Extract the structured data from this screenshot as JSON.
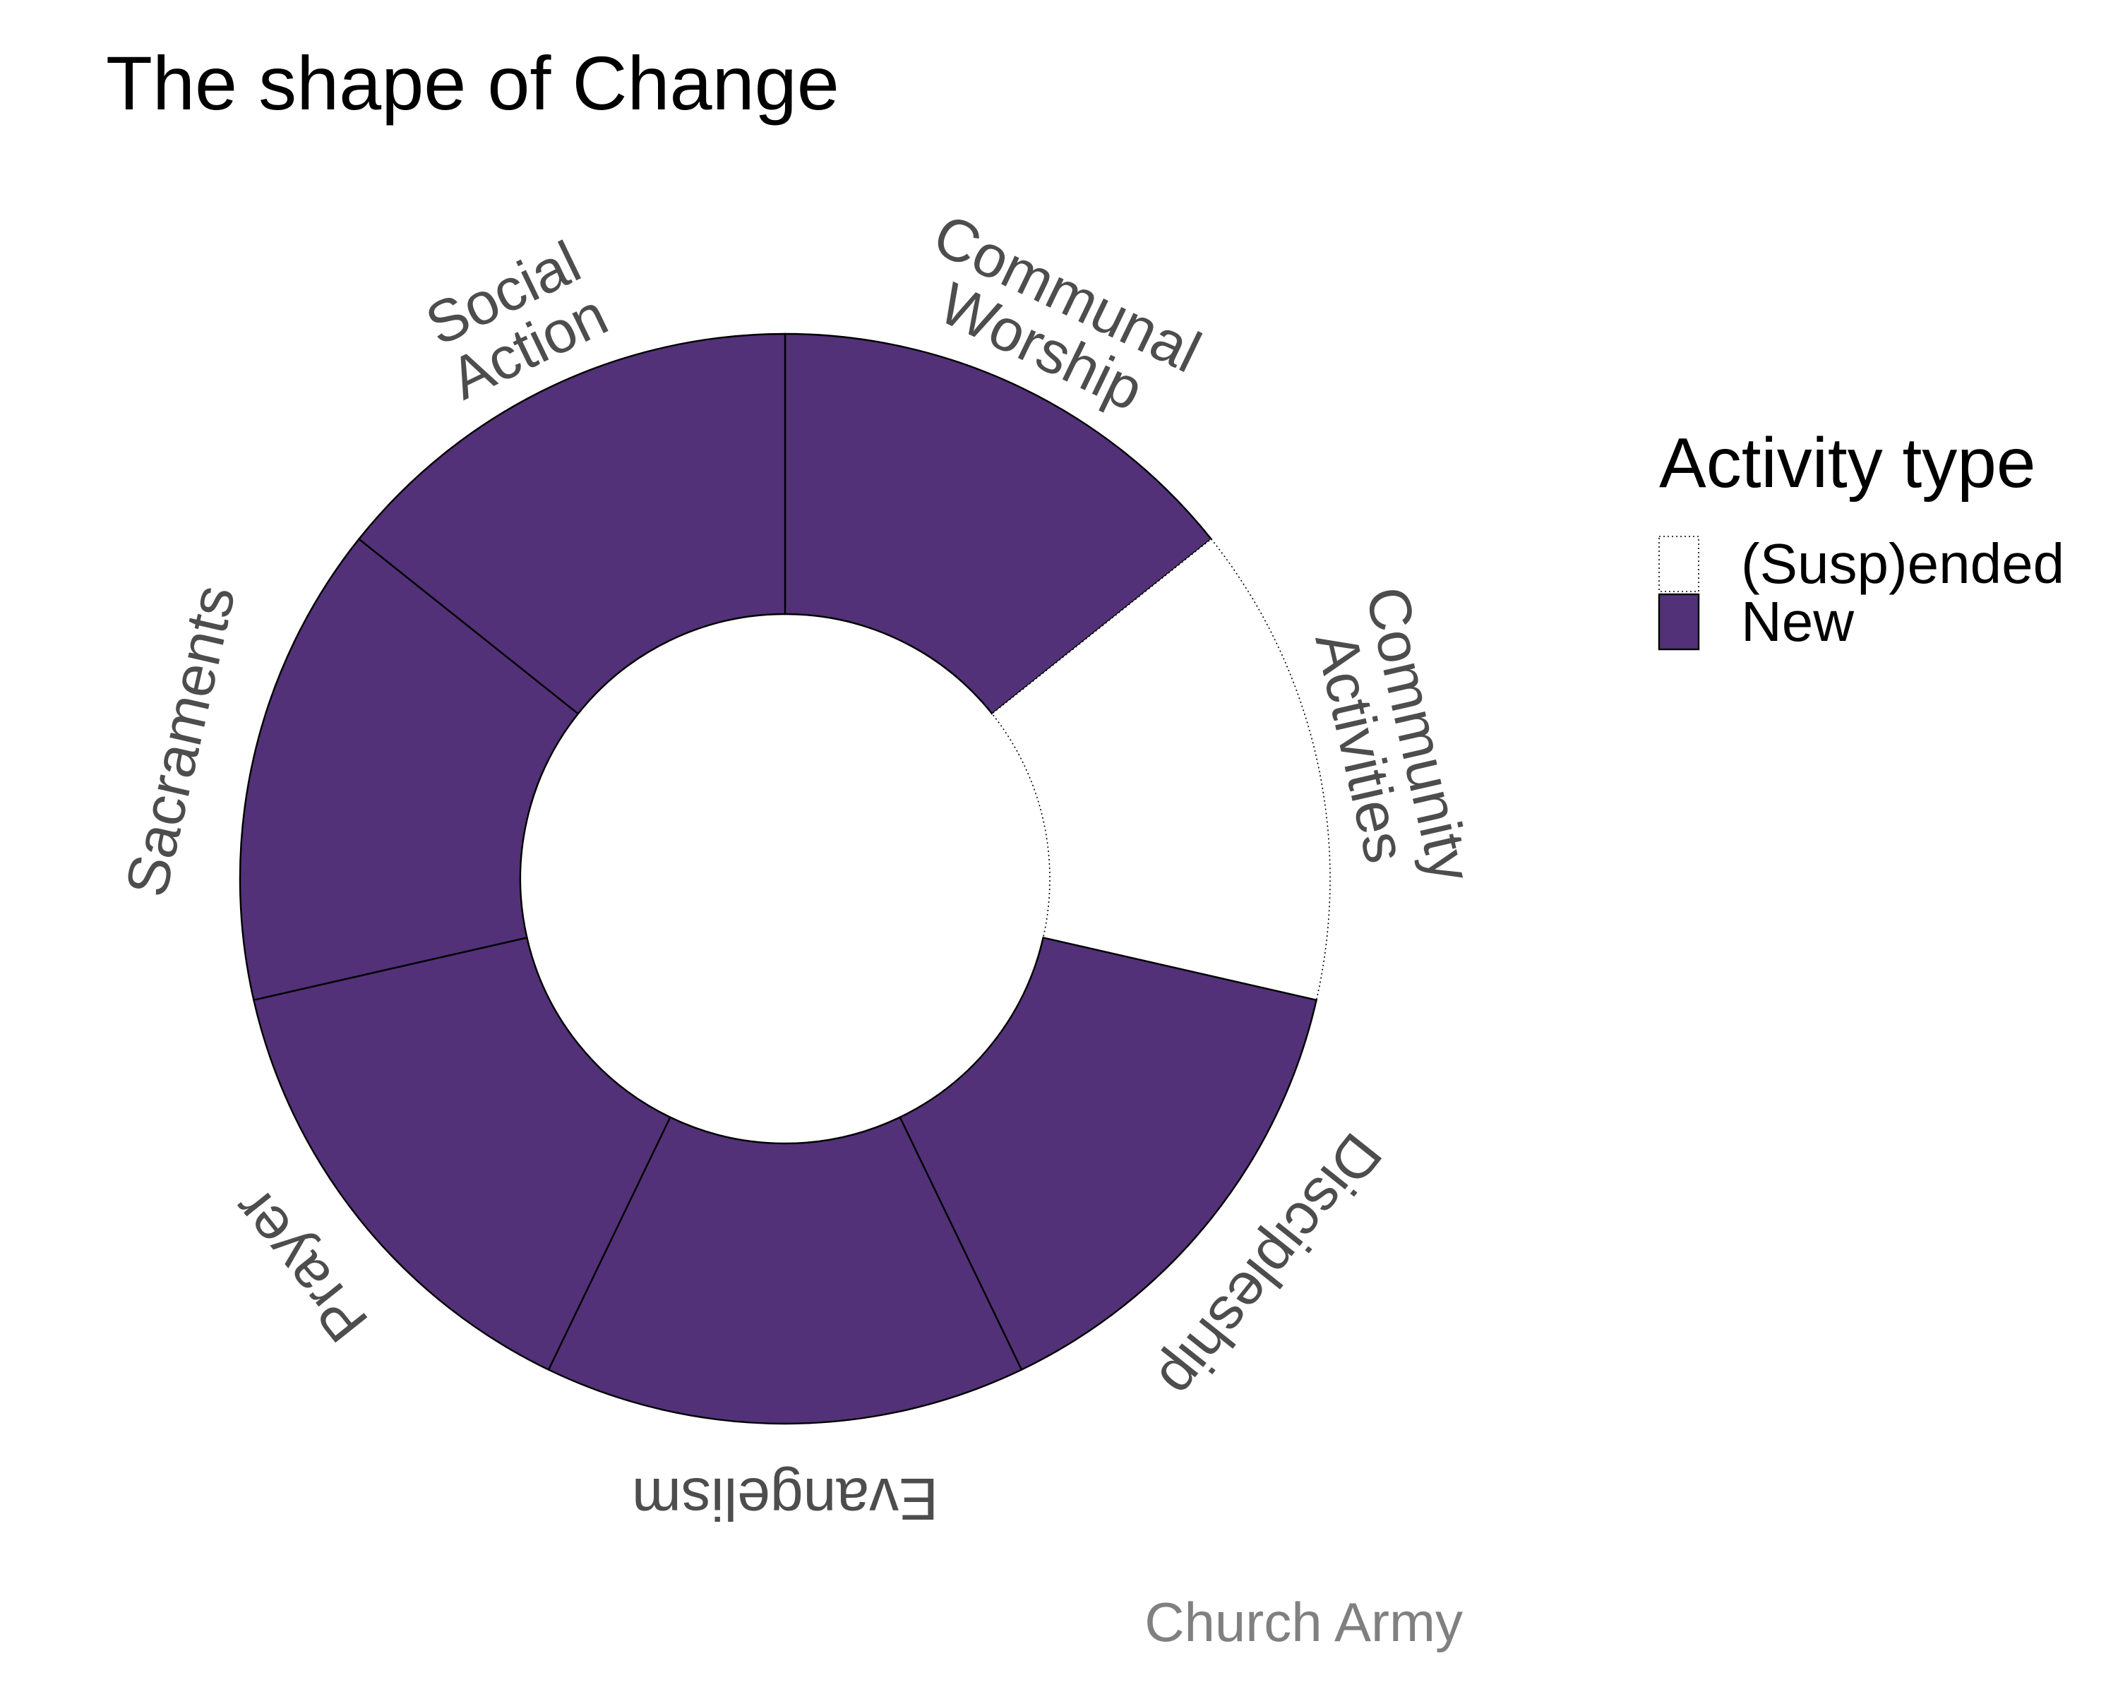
{
  "chart_data": {
    "type": "pie",
    "subtype": "donut",
    "title": "The shape of Change",
    "caption": "Church Army",
    "categories": [
      {
        "label_lines": [
          "Communal",
          "Worship"
        ],
        "activity_type": "New",
        "value": 1
      },
      {
        "label_lines": [
          "Community",
          "Activities"
        ],
        "activity_type": "(Susp)ended",
        "value": 1
      },
      {
        "label_lines": [
          "Discipleship"
        ],
        "activity_type": "New",
        "value": 1
      },
      {
        "label_lines": [
          "Evangelism"
        ],
        "activity_type": "New",
        "value": 1
      },
      {
        "label_lines": [
          "Prayer"
        ],
        "activity_type": "New",
        "value": 1
      },
      {
        "label_lines": [
          "Sacraments"
        ],
        "activity_type": "New",
        "value": 1
      },
      {
        "label_lines": [
          "Social",
          "Action"
        ],
        "activity_type": "New",
        "value": 1
      }
    ],
    "legend": {
      "title": "Activity type",
      "position": "right",
      "entries": [
        {
          "label": "(Susp)ended",
          "color": "#ffffff",
          "line": "dotted"
        },
        {
          "label": "New",
          "color": "#523178",
          "line": "solid"
        }
      ]
    }
  }
}
